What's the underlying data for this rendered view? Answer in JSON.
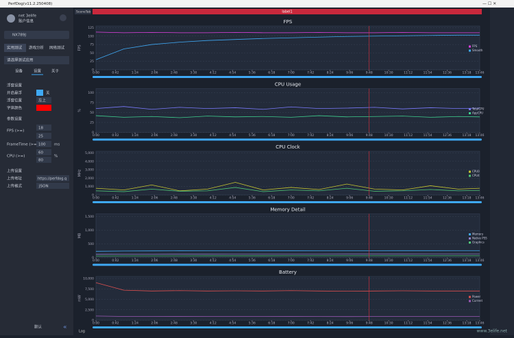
{
  "window": {
    "title": "PerfDog(v11.2.250408)"
  },
  "sidebar": {
    "user": "net 3elife",
    "account": "账户信息",
    "device": "NX789J",
    "tabs": [
      "实用测试",
      "游戏分析",
      "网络测试"
    ],
    "app_select": "请选择测试应用",
    "sub_tabs": [
      "设备",
      "设置",
      "关于"
    ],
    "float_section": "浮窗设置",
    "float_on": "开启悬浮",
    "float_on_value": "关",
    "float_pos": "浮窗位置",
    "float_pos_value": "左上",
    "font_color": "字体颜色",
    "param_section": "参数设置",
    "fps_label": "FPS (>=)",
    "fps_values": [
      18,
      25
    ],
    "frametime_label": "FrameTime (>=)",
    "frametime_value": 100,
    "frametime_unit": "ms",
    "cpu_label": "CPU (>=)",
    "cpu_values": [
      60,
      80
    ],
    "cpu_unit": "%",
    "upload_section": "上传设置",
    "upload_addr": "上传地址",
    "upload_addr_value": "https://perfdog.q",
    "upload_format": "上传格式",
    "upload_format_value": "JSON",
    "default": "默认"
  },
  "scene_tab": "SceneTab",
  "label": "label1",
  "log": "Log",
  "watermark": "www.3elife.net",
  "chart_data": [
    {
      "type": "line",
      "title": "FPS",
      "ylabel": "FPS",
      "x": [
        0,
        60,
        120,
        180,
        240,
        300,
        360,
        420,
        480,
        540,
        600,
        660,
        720,
        780,
        826
      ],
      "xlim": [
        0,
        826
      ],
      "xticks": [
        {
          "value": 0,
          "label": "0:00"
        },
        {
          "value": 42,
          "label": "0:42"
        },
        {
          "value": 84,
          "label": "1:24"
        },
        {
          "value": 126,
          "label": "2:06"
        },
        {
          "value": 168,
          "label": "2:48"
        },
        {
          "value": 210,
          "label": "3:30"
        },
        {
          "value": 252,
          "label": "4:12"
        },
        {
          "value": 294,
          "label": "4:54"
        },
        {
          "value": 336,
          "label": "5:36"
        },
        {
          "value": 378,
          "label": "6:18"
        },
        {
          "value": 420,
          "label": "7:00"
        },
        {
          "value": 462,
          "label": "7:42"
        },
        {
          "value": 504,
          "label": "8:24"
        },
        {
          "value": 546,
          "label": "9:06"
        },
        {
          "value": 588,
          "label": "9:48"
        },
        {
          "value": 630,
          "label": "10:30"
        },
        {
          "value": 672,
          "label": "11:12"
        },
        {
          "value": 714,
          "label": "11:54"
        },
        {
          "value": 756,
          "label": "12:36"
        },
        {
          "value": 798,
          "label": "13:18"
        },
        {
          "value": 826,
          "label": "13:46"
        }
      ],
      "ylim": [
        0,
        130
      ],
      "yticks": [
        0,
        25,
        50,
        75,
        100,
        125
      ],
      "marker": 588,
      "series": [
        {
          "name": "FPS",
          "color": "#e040e0",
          "values": [
            112,
            110,
            111,
            110,
            110,
            111,
            110,
            110,
            111,
            110,
            110,
            111,
            110,
            110,
            110
          ]
        },
        {
          "name": "Smooth",
          "color": "#3fa9f5",
          "values": [
            30,
            62,
            75,
            82,
            87,
            90,
            93,
            95,
            97,
            99,
            100,
            101,
            102,
            103,
            103
          ]
        }
      ]
    },
    {
      "type": "line",
      "title": "CPU Usage",
      "ylabel": "%",
      "x": [
        0,
        60,
        120,
        180,
        240,
        300,
        360,
        420,
        480,
        540,
        600,
        660,
        720,
        780,
        826
      ],
      "xlim": [
        0,
        826
      ],
      "xticks": [
        {
          "value": 0,
          "label": "0:00"
        },
        {
          "value": 42,
          "label": "0:42"
        },
        {
          "value": 84,
          "label": "1:24"
        },
        {
          "value": 126,
          "label": "2:06"
        },
        {
          "value": 168,
          "label": "2:48"
        },
        {
          "value": 210,
          "label": "3:30"
        },
        {
          "value": 252,
          "label": "4:12"
        },
        {
          "value": 294,
          "label": "4:54"
        },
        {
          "value": 336,
          "label": "5:36"
        },
        {
          "value": 378,
          "label": "6:18"
        },
        {
          "value": 420,
          "label": "7:00"
        },
        {
          "value": 462,
          "label": "7:42"
        },
        {
          "value": 504,
          "label": "8:24"
        },
        {
          "value": 546,
          "label": "9:06"
        },
        {
          "value": 588,
          "label": "9:48"
        },
        {
          "value": 630,
          "label": "10:30"
        },
        {
          "value": 672,
          "label": "11:12"
        },
        {
          "value": 714,
          "label": "11:54"
        },
        {
          "value": 756,
          "label": "12:36"
        },
        {
          "value": 798,
          "label": "13:18"
        },
        {
          "value": 826,
          "label": "13:46"
        }
      ],
      "ylim": [
        0,
        110
      ],
      "yticks": [
        0,
        25,
        50,
        75,
        100
      ],
      "marker": 588,
      "series": [
        {
          "name": "TotalCPU",
          "color": "#7b7bff",
          "values": [
            60,
            65,
            58,
            63,
            60,
            62,
            58,
            64,
            60,
            61,
            63,
            59,
            62,
            60,
            61
          ]
        },
        {
          "name": "AppCPU",
          "color": "#3ecf8e",
          "values": [
            42,
            38,
            40,
            37,
            41,
            39,
            40,
            38,
            42,
            39,
            40,
            41,
            38,
            40,
            39
          ]
        }
      ]
    },
    {
      "type": "line",
      "title": "CPU Clock",
      "ylabel": "MHz",
      "x": [
        0,
        60,
        120,
        180,
        240,
        300,
        360,
        420,
        480,
        540,
        600,
        660,
        720,
        780,
        826
      ],
      "xlim": [
        0,
        826
      ],
      "xticks": [
        {
          "value": 0,
          "label": "0:00"
        },
        {
          "value": 42,
          "label": "0:42"
        },
        {
          "value": 84,
          "label": "1:24"
        },
        {
          "value": 126,
          "label": "2:06"
        },
        {
          "value": 168,
          "label": "2:48"
        },
        {
          "value": 210,
          "label": "3:30"
        },
        {
          "value": 252,
          "label": "4:12"
        },
        {
          "value": 294,
          "label": "4:54"
        },
        {
          "value": 336,
          "label": "5:36"
        },
        {
          "value": 378,
          "label": "6:18"
        },
        {
          "value": 420,
          "label": "7:00"
        },
        {
          "value": 462,
          "label": "7:42"
        },
        {
          "value": 504,
          "label": "8:24"
        },
        {
          "value": 546,
          "label": "9:06"
        },
        {
          "value": 588,
          "label": "9:48"
        },
        {
          "value": 630,
          "label": "10:30"
        },
        {
          "value": 672,
          "label": "11:12"
        },
        {
          "value": 714,
          "label": "11:54"
        },
        {
          "value": 756,
          "label": "12:36"
        },
        {
          "value": 798,
          "label": "13:18"
        },
        {
          "value": 826,
          "label": "13:46"
        }
      ],
      "ylim": [
        0,
        5200
      ],
      "yticks": [
        0,
        {
          "value": 1000,
          "label": "1,000"
        },
        {
          "value": 2000,
          "label": "2,000"
        },
        {
          "value": 3000,
          "label": "3,000"
        },
        {
          "value": 4000,
          "label": "4,000"
        },
        {
          "value": 5000,
          "label": "5,000"
        }
      ],
      "marker": 588,
      "series": [
        {
          "name": "CPU0",
          "color": "#c8c830",
          "values": [
            800,
            600,
            1200,
            500,
            700,
            1500,
            600,
            900,
            650,
            1300,
            700,
            600,
            1100,
            700,
            800
          ]
        },
        {
          "name": "CPU4",
          "color": "#50c878",
          "values": [
            500,
            400,
            700,
            450,
            500,
            900,
            400,
            600,
            500,
            800,
            450,
            500,
            650,
            500,
            550
          ]
        }
      ]
    },
    {
      "type": "line",
      "title": "Memory Detail",
      "ylabel": "MB",
      "x": [
        0,
        60,
        120,
        180,
        240,
        300,
        360,
        420,
        480,
        540,
        600,
        660,
        720,
        780,
        826
      ],
      "xlim": [
        0,
        826
      ],
      "xticks": [
        {
          "value": 0,
          "label": "0:00"
        },
        {
          "value": 42,
          "label": "0:42"
        },
        {
          "value": 84,
          "label": "1:24"
        },
        {
          "value": 126,
          "label": "2:06"
        },
        {
          "value": 168,
          "label": "2:48"
        },
        {
          "value": 210,
          "label": "3:30"
        },
        {
          "value": 252,
          "label": "4:12"
        },
        {
          "value": 294,
          "label": "4:54"
        },
        {
          "value": 336,
          "label": "5:36"
        },
        {
          "value": 378,
          "label": "6:18"
        },
        {
          "value": 420,
          "label": "7:00"
        },
        {
          "value": 462,
          "label": "7:42"
        },
        {
          "value": 504,
          "label": "8:24"
        },
        {
          "value": 546,
          "label": "9:06"
        },
        {
          "value": 588,
          "label": "9:48"
        },
        {
          "value": 630,
          "label": "10:30"
        },
        {
          "value": 672,
          "label": "11:12"
        },
        {
          "value": 714,
          "label": "11:54"
        },
        {
          "value": 756,
          "label": "12:36"
        },
        {
          "value": 798,
          "label": "13:18"
        },
        {
          "value": 826,
          "label": "13:46"
        }
      ],
      "ylim": [
        0,
        1600
      ],
      "yticks": [
        0,
        500,
        {
          "value": 1000,
          "label": "1,000"
        },
        {
          "value": 1500,
          "label": "1,500"
        }
      ],
      "marker": 588,
      "series": [
        {
          "name": "Memory",
          "color": "#3fa9f5",
          "values": [
            230,
            240,
            245,
            248,
            250,
            250,
            252,
            252,
            253,
            254,
            254,
            255,
            255,
            256,
            256
          ]
        },
        {
          "name": "Native PSS",
          "color": "#8e7cc3",
          "values": [
            120,
            125,
            128,
            130,
            130,
            131,
            131,
            132,
            132,
            133,
            133,
            133,
            134,
            134,
            134
          ]
        },
        {
          "name": "Graphics",
          "color": "#50c878",
          "values": [
            60,
            62,
            63,
            63,
            64,
            64,
            64,
            65,
            65,
            65,
            65,
            66,
            66,
            66,
            66
          ]
        }
      ]
    },
    {
      "type": "line",
      "title": "Battery",
      "ylabel": "mW",
      "x": [
        0,
        60,
        120,
        180,
        240,
        300,
        360,
        420,
        480,
        540,
        600,
        660,
        720,
        780,
        826
      ],
      "xlim": [
        0,
        826
      ],
      "xticks": [
        {
          "value": 0,
          "label": "0:00"
        },
        {
          "value": 42,
          "label": "0:42"
        },
        {
          "value": 84,
          "label": "1:24"
        },
        {
          "value": 126,
          "label": "2:06"
        },
        {
          "value": 168,
          "label": "2:48"
        },
        {
          "value": 210,
          "label": "3:30"
        },
        {
          "value": 252,
          "label": "4:12"
        },
        {
          "value": 294,
          "label": "4:54"
        },
        {
          "value": 336,
          "label": "5:36"
        },
        {
          "value": 378,
          "label": "6:18"
        },
        {
          "value": 420,
          "label": "7:00"
        },
        {
          "value": 462,
          "label": "7:42"
        },
        {
          "value": 504,
          "label": "8:24"
        },
        {
          "value": 546,
          "label": "9:06"
        },
        {
          "value": 588,
          "label": "9:48"
        },
        {
          "value": 630,
          "label": "10:30"
        },
        {
          "value": 672,
          "label": "11:12"
        },
        {
          "value": 714,
          "label": "11:54"
        },
        {
          "value": 756,
          "label": "12:36"
        },
        {
          "value": 798,
          "label": "13:18"
        },
        {
          "value": 826,
          "label": "13:46"
        }
      ],
      "ylim": [
        0,
        10500
      ],
      "yticks": [
        0,
        {
          "value": 2500,
          "label": "2,500"
        },
        {
          "value": 5000,
          "label": "5,000"
        },
        {
          "value": 7500,
          "label": "7,500"
        },
        {
          "value": 10000,
          "label": "10,000"
        }
      ],
      "marker": 588,
      "series": [
        {
          "name": "Power",
          "color": "#e05050",
          "values": [
            9000,
            7200,
            7000,
            7100,
            7000,
            7050,
            7000,
            7100,
            7000,
            6950,
            7000,
            7050,
            7000,
            7000,
            7000
          ]
        },
        {
          "name": "Current",
          "color": "#9b59b6",
          "values": [
            1000,
            900,
            880,
            890,
            880,
            885,
            880,
            890,
            880,
            875,
            880,
            885,
            880,
            880,
            880
          ]
        }
      ]
    }
  ]
}
